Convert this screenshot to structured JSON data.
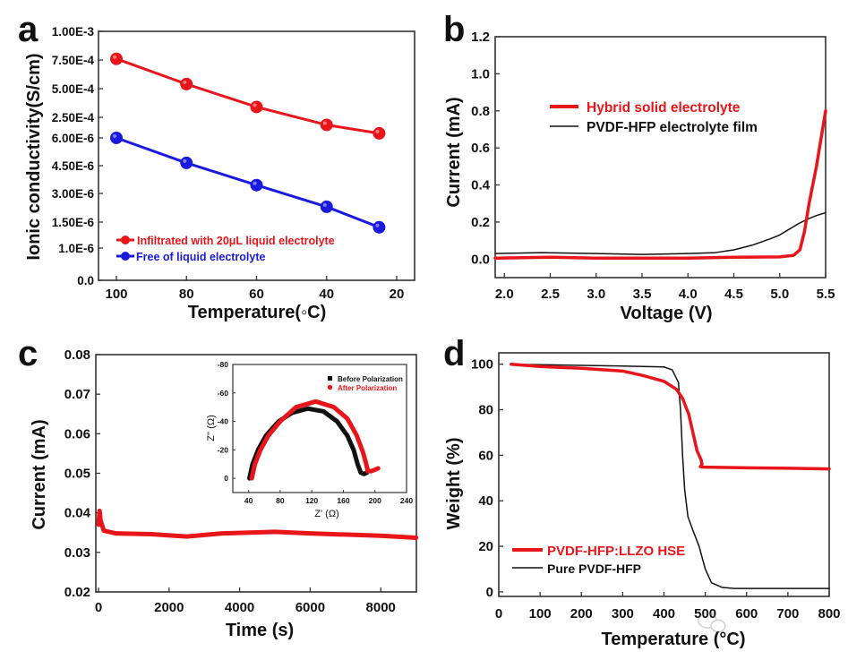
{
  "chart_data": [
    {
      "panel": "a",
      "type": "line",
      "xlabel": "Temperature(◦C)",
      "ylabel": "Ionic conductivity(S/cm)",
      "xlim": [
        105,
        15
      ],
      "x_ticks": [
        100,
        80,
        60,
        40,
        20
      ],
      "y_ticks": [
        {
          "value": 0.0,
          "label": "0.0"
        },
        {
          "value": 1e-06,
          "label": "1.0E-6"
        },
        {
          "value": 1.5e-06,
          "label": "1.50E-6"
        },
        {
          "value": 3e-06,
          "label": "3.00E-6"
        },
        {
          "value": 4.5e-06,
          "label": "4.50E-6"
        },
        {
          "value": 6e-06,
          "label": "6.00E-6"
        },
        {
          "value": 0.00025,
          "label": "2.50E-4"
        },
        {
          "value": 0.0005,
          "label": "5.00E-4"
        },
        {
          "value": 0.00075,
          "label": "7.50E-4"
        },
        {
          "value": 0.001,
          "label": "1.00E-3"
        }
      ],
      "legend_position": "bottom-left",
      "series": [
        {
          "name": "Infiltrated with 20μL liquid electrolyte",
          "color": "#e8151b",
          "x": [
            100,
            80,
            60,
            40,
            25
          ],
          "y": [
            0.00076,
            0.00054,
            0.00034,
            0.00016,
            6e-05
          ]
        },
        {
          "name": "Free of liquid electrolyte",
          "color": "#1a1adf",
          "x": [
            100,
            80,
            60,
            40,
            25
          ],
          "y": [
            6.2e-06,
            4.65e-06,
            3.45e-06,
            2.3e-06,
            1.4e-06
          ]
        }
      ]
    },
    {
      "panel": "b",
      "type": "line",
      "xlabel": "Voltage (V)",
      "ylabel": "Current (mA)",
      "xlim": [
        1.9,
        5.5
      ],
      "ylim": [
        -0.1,
        1.2
      ],
      "x_ticks": [
        "2.0",
        "2.5",
        "3.0",
        "3.5",
        "4.0",
        "4.5",
        "5.0",
        "5.5"
      ],
      "y_ticks": [
        "0.0",
        "0.2",
        "0.4",
        "0.6",
        "0.8",
        "1.0",
        "1.2"
      ],
      "legend_position": "center-left",
      "series": [
        {
          "name": "Hybrid solid electrolyte",
          "color": "#e8151b",
          "points": [
            [
              1.9,
              0.005
            ],
            [
              2.5,
              0.01
            ],
            [
              3.0,
              0.005
            ],
            [
              4.0,
              0.005
            ],
            [
              4.5,
              0.01
            ],
            [
              5.0,
              0.012
            ],
            [
              5.15,
              0.02
            ],
            [
              5.22,
              0.05
            ],
            [
              5.27,
              0.15
            ],
            [
              5.32,
              0.3
            ],
            [
              5.4,
              0.5
            ],
            [
              5.5,
              0.8
            ]
          ]
        },
        {
          "name": "PVDF-HFP electrolyte film",
          "color": "#111111",
          "points": [
            [
              1.9,
              0.03
            ],
            [
              2.4,
              0.035
            ],
            [
              3.0,
              0.03
            ],
            [
              3.5,
              0.025
            ],
            [
              4.0,
              0.03
            ],
            [
              4.3,
              0.035
            ],
            [
              4.5,
              0.05
            ],
            [
              4.7,
              0.075
            ],
            [
              4.9,
              0.11
            ],
            [
              5.0,
              0.13
            ],
            [
              5.1,
              0.16
            ],
            [
              5.2,
              0.19
            ],
            [
              5.3,
              0.215
            ],
            [
              5.4,
              0.235
            ],
            [
              5.5,
              0.25
            ]
          ]
        }
      ]
    },
    {
      "panel": "c",
      "type": "line",
      "xlabel": "Time (s)",
      "ylabel": "Current (mA)",
      "xlim": [
        -76,
        9010
      ],
      "ylim": [
        0.02,
        0.08
      ],
      "x_ticks": [
        "0",
        "2000",
        "4000",
        "6000",
        "8000"
      ],
      "y_ticks": [
        "0.02",
        "0.03",
        "0.04",
        "0.05",
        "0.06",
        "0.07",
        "0.08"
      ],
      "series": [
        {
          "color": "#e8151b",
          "points": [
            [
              0,
              0.037
            ],
            [
              30,
              0.0405
            ],
            [
              60,
              0.038
            ],
            [
              150,
              0.0355
            ],
            [
              500,
              0.0348
            ],
            [
              1500,
              0.0346
            ],
            [
              2500,
              0.034
            ],
            [
              3500,
              0.0348
            ],
            [
              5000,
              0.0352
            ],
            [
              6000,
              0.0348
            ],
            [
              8000,
              0.0342
            ],
            [
              9000,
              0.0337
            ]
          ]
        }
      ],
      "inset": {
        "type": "scatter",
        "xlabel": "Z' (Ω)",
        "ylabel": "Z'' (Ω)",
        "xlim": [
          20,
          240
        ],
        "ylim": [
          10,
          -80
        ],
        "x_ticks": [
          "40",
          "80",
          "120",
          "160",
          "200",
          "240"
        ],
        "y_ticks": [
          "0",
          "-20",
          "-40",
          "-60",
          "-80"
        ],
        "legend_position": "top-right",
        "series": [
          {
            "name": "Before Polarization",
            "color": "#111111",
            "marker": "square",
            "points": [
              [
                41,
                0
              ],
              [
                45,
                -10
              ],
              [
                52,
                -20
              ],
              [
                62,
                -30
              ],
              [
                78,
                -40
              ],
              [
                95,
                -46
              ],
              [
                115,
                -49
              ],
              [
                135,
                -47
              ],
              [
                152,
                -40
              ],
              [
                165,
                -30
              ],
              [
                173,
                -20
              ],
              [
                178,
                -10
              ],
              [
                182,
                -4
              ],
              [
                186,
                -3
              ],
              [
                190,
                -4
              ]
            ]
          },
          {
            "name": "After Polarization",
            "color": "#e8151b",
            "marker": "circle",
            "points": [
              [
                44,
                0
              ],
              [
                48,
                -10
              ],
              [
                55,
                -20
              ],
              [
                65,
                -30
              ],
              [
                80,
                -40
              ],
              [
                100,
                -50
              ],
              [
                125,
                -54
              ],
              [
                148,
                -50
              ],
              [
                165,
                -42
              ],
              [
                177,
                -30
              ],
              [
                185,
                -18
              ],
              [
                189,
                -10
              ],
              [
                191,
                -5
              ],
              [
                195,
                -5
              ],
              [
                200,
                -6
              ],
              [
                204,
                -7
              ]
            ]
          }
        ]
      }
    },
    {
      "panel": "d",
      "type": "line",
      "xlabel": "Temperature (°C)",
      "ylabel": "Weight (%)",
      "xlim": [
        0,
        800
      ],
      "ylim": [
        -2,
        105
      ],
      "x_ticks": [
        "0",
        "100",
        "200",
        "300",
        "400",
        "500",
        "600",
        "700",
        "800"
      ],
      "y_ticks": [
        "0",
        "20",
        "40",
        "60",
        "80",
        "100"
      ],
      "legend_position": "bottom-left",
      "series": [
        {
          "name": "PVDF-HFP:LLZO HSE",
          "color": "#e8151b",
          "points": [
            [
              30,
              100
            ],
            [
              100,
              99
            ],
            [
              200,
              98.2
            ],
            [
              300,
              97
            ],
            [
              350,
              95
            ],
            [
              400,
              92.5
            ],
            [
              430,
              89
            ],
            [
              445,
              85
            ],
            [
              460,
              78
            ],
            [
              470,
              70
            ],
            [
              480,
              62
            ],
            [
              490,
              58
            ],
            [
              492,
              56
            ],
            [
              488,
              55
            ],
            [
              495,
              54.8
            ],
            [
              600,
              54.5
            ],
            [
              700,
              54.3
            ],
            [
              800,
              54
            ]
          ]
        },
        {
          "name": "Pure PVDF-HFP",
          "color": "#111111",
          "points": [
            [
              30,
              100
            ],
            [
              100,
              99.8
            ],
            [
              200,
              99.5
            ],
            [
              300,
              99.2
            ],
            [
              400,
              98.8
            ],
            [
              420,
              97.5
            ],
            [
              435,
              92
            ],
            [
              440,
              80
            ],
            [
              445,
              60
            ],
            [
              450,
              45
            ],
            [
              458,
              33
            ],
            [
              470,
              27
            ],
            [
              485,
              20
            ],
            [
              500,
              10
            ],
            [
              515,
              4
            ],
            [
              540,
              2
            ],
            [
              570,
              1.5
            ],
            [
              800,
              1.5
            ]
          ]
        }
      ]
    }
  ],
  "panel_labels": [
    "a",
    "b",
    "c",
    "d"
  ],
  "watermark": "能源学人"
}
